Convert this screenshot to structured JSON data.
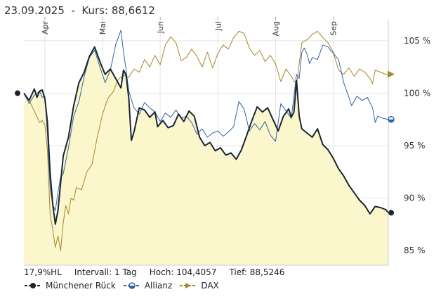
{
  "header": {
    "date": "23.09.2025",
    "separator": "-",
    "kurs_label": "Kurs:",
    "kurs_value": "88,6612"
  },
  "stats": {
    "range": "17,9%HL",
    "interval": "Intervall: 1 Tag",
    "high": "Hoch: 104,4057",
    "low": "Tief: 88,5246"
  },
  "chart_data": {
    "type": "line",
    "title": "23.09.2025 - Kurs: 88,6612",
    "xlabel": "",
    "ylabel": "",
    "x_ticks": [
      "Apr",
      "Mai",
      "Jun",
      "Jul",
      "Aug",
      "Sep"
    ],
    "y_ticks": [
      85,
      90,
      95,
      100,
      105
    ],
    "y_tick_labels": [
      "85 %",
      "90 %",
      "95 %",
      "100 %",
      "105 %"
    ],
    "ylim": [
      83.6,
      107
    ],
    "n_days": 140,
    "month_start_index": [
      8,
      30,
      52,
      74,
      96,
      118
    ],
    "series": [
      {
        "name": "Münchener Rück",
        "color": "#1a2530",
        "end_value": 88.6,
        "points": [
          [
            0,
            100
          ],
          [
            2,
            99.3
          ],
          [
            4,
            100.4
          ],
          [
            5,
            99.6
          ],
          [
            6,
            100.2
          ],
          [
            7,
            100.3
          ],
          [
            8,
            99.5
          ],
          [
            9,
            97.2
          ],
          [
            10,
            92.5
          ],
          [
            11,
            89.4
          ],
          [
            12,
            87.5
          ],
          [
            13,
            88.8
          ],
          [
            14,
            91.4
          ],
          [
            15,
            94.0
          ],
          [
            17,
            95.8
          ],
          [
            19,
            98.8
          ],
          [
            21,
            101.0
          ],
          [
            23,
            102.0
          ],
          [
            25,
            103.5
          ],
          [
            27,
            104.4
          ],
          [
            29,
            103.0
          ],
          [
            31,
            101.8
          ],
          [
            33,
            102.3
          ],
          [
            35,
            101.4
          ],
          [
            37,
            100.5
          ],
          [
            38,
            102.2
          ],
          [
            39,
            101.7
          ],
          [
            40,
            99.5
          ],
          [
            41,
            95.5
          ],
          [
            42,
            96.3
          ],
          [
            44,
            98.6
          ],
          [
            46,
            98.4
          ],
          [
            48,
            97.7
          ],
          [
            50,
            98.2
          ],
          [
            51,
            96.8
          ],
          [
            53,
            97.4
          ],
          [
            55,
            96.7
          ],
          [
            57,
            96.9
          ],
          [
            59,
            98.0
          ],
          [
            61,
            97.3
          ],
          [
            63,
            98.3
          ],
          [
            65,
            97.8
          ],
          [
            67,
            95.8
          ],
          [
            69,
            95.0
          ],
          [
            71,
            95.3
          ],
          [
            73,
            94.5
          ],
          [
            75,
            94.8
          ],
          [
            77,
            94.1
          ],
          [
            79,
            94.3
          ],
          [
            81,
            93.7
          ],
          [
            83,
            94.6
          ],
          [
            85,
            96.0
          ],
          [
            87,
            97.4
          ],
          [
            89,
            98.7
          ],
          [
            91,
            98.2
          ],
          [
            93,
            98.6
          ],
          [
            95,
            97.5
          ],
          [
            97,
            96.4
          ],
          [
            99,
            97.8
          ],
          [
            101,
            98.5
          ],
          [
            102,
            97.7
          ],
          [
            103,
            98.2
          ],
          [
            104,
            101.2
          ],
          [
            105,
            97.8
          ],
          [
            106,
            96.6
          ],
          [
            108,
            96.2
          ],
          [
            110,
            95.8
          ],
          [
            112,
            96.6
          ],
          [
            114,
            95.1
          ],
          [
            116,
            94.6
          ],
          [
            118,
            93.8
          ],
          [
            120,
            92.8
          ],
          [
            122,
            92.1
          ],
          [
            124,
            91.2
          ],
          [
            126,
            90.5
          ],
          [
            128,
            89.8
          ],
          [
            130,
            89.3
          ],
          [
            132,
            88.5
          ],
          [
            134,
            89.2
          ],
          [
            136,
            89.1
          ],
          [
            138,
            88.9
          ],
          [
            139,
            88.6
          ]
        ]
      },
      {
        "name": "Allianz",
        "color": "#2f63a8",
        "end_value": 97.5,
        "points": [
          [
            0,
            100
          ],
          [
            2,
            99.0
          ],
          [
            4,
            99.8
          ],
          [
            6,
            100.2
          ],
          [
            7,
            99.6
          ],
          [
            8,
            99.7
          ],
          [
            9,
            96.0
          ],
          [
            10,
            91.0
          ],
          [
            11,
            89.4
          ],
          [
            12,
            88.8
          ],
          [
            13,
            90.5
          ],
          [
            14,
            92.0
          ],
          [
            15,
            92.3
          ],
          [
            17,
            94.8
          ],
          [
            19,
            97.8
          ],
          [
            21,
            99.2
          ],
          [
            23,
            101.6
          ],
          [
            25,
            103.4
          ],
          [
            27,
            104.1
          ],
          [
            29,
            102.5
          ],
          [
            31,
            101.0
          ],
          [
            33,
            102.2
          ],
          [
            35,
            104.6
          ],
          [
            37,
            106.0
          ],
          [
            38,
            103.9
          ],
          [
            39,
            102.2
          ],
          [
            40,
            100.2
          ],
          [
            42,
            98.6
          ],
          [
            44,
            98.0
          ],
          [
            46,
            99.1
          ],
          [
            48,
            98.6
          ],
          [
            50,
            98.2
          ],
          [
            52,
            97.3
          ],
          [
            54,
            98.1
          ],
          [
            56,
            97.7
          ],
          [
            58,
            98.4
          ],
          [
            60,
            97.6
          ],
          [
            62,
            97.8
          ],
          [
            64,
            97.2
          ],
          [
            66,
            96.1
          ],
          [
            68,
            96.6
          ],
          [
            70,
            95.8
          ],
          [
            72,
            96.2
          ],
          [
            74,
            96.4
          ],
          [
            76,
            95.9
          ],
          [
            78,
            96.3
          ],
          [
            80,
            96.8
          ],
          [
            82,
            99.2
          ],
          [
            84,
            98.5
          ],
          [
            86,
            96.4
          ],
          [
            88,
            97.1
          ],
          [
            90,
            96.5
          ],
          [
            92,
            97.3
          ],
          [
            94,
            96.0
          ],
          [
            96,
            95.4
          ],
          [
            98,
            99.0
          ],
          [
            100,
            98.3
          ],
          [
            102,
            97.6
          ],
          [
            104,
            101.8
          ],
          [
            105,
            101.4
          ],
          [
            106,
            103.9
          ],
          [
            107,
            104.3
          ],
          [
            108,
            103.7
          ],
          [
            109,
            102.8
          ],
          [
            110,
            103.4
          ],
          [
            112,
            103.2
          ],
          [
            114,
            104.6
          ],
          [
            116,
            104.4
          ],
          [
            118,
            103.8
          ],
          [
            120,
            103.2
          ],
          [
            122,
            101.0
          ],
          [
            124,
            99.6
          ],
          [
            125,
            98.8
          ],
          [
            127,
            99.7
          ],
          [
            129,
            99.3
          ],
          [
            131,
            99.6
          ],
          [
            133,
            98.6
          ],
          [
            134,
            97.2
          ],
          [
            135,
            97.8
          ],
          [
            137,
            97.6
          ],
          [
            139,
            97.5
          ]
        ]
      },
      {
        "name": "DAX",
        "color": "#a8862a",
        "end_value": 101.8,
        "points": [
          [
            0,
            100
          ],
          [
            2,
            99.3
          ],
          [
            4,
            98.3
          ],
          [
            6,
            97.2
          ],
          [
            7,
            97.4
          ],
          [
            8,
            97.0
          ],
          [
            9,
            94.5
          ],
          [
            10,
            88.5
          ],
          [
            11,
            87.0
          ],
          [
            12,
            85.3
          ],
          [
            13,
            86.4
          ],
          [
            14,
            85.0
          ],
          [
            15,
            87.6
          ],
          [
            16,
            89.3
          ],
          [
            17,
            88.5
          ],
          [
            18,
            90.0
          ],
          [
            19,
            89.8
          ],
          [
            20,
            91.0
          ],
          [
            22,
            90.8
          ],
          [
            24,
            92.5
          ],
          [
            26,
            93.2
          ],
          [
            28,
            95.8
          ],
          [
            30,
            98.0
          ],
          [
            32,
            99.5
          ],
          [
            34,
            100.1
          ],
          [
            36,
            101.3
          ],
          [
            38,
            101.7
          ],
          [
            40,
            101.5
          ],
          [
            42,
            102.3
          ],
          [
            44,
            102.0
          ],
          [
            46,
            103.2
          ],
          [
            48,
            102.5
          ],
          [
            50,
            103.6
          ],
          [
            52,
            102.7
          ],
          [
            54,
            104.6
          ],
          [
            56,
            105.4
          ],
          [
            58,
            104.8
          ],
          [
            60,
            103.1
          ],
          [
            62,
            103.4
          ],
          [
            64,
            104.2
          ],
          [
            66,
            103.5
          ],
          [
            68,
            102.5
          ],
          [
            70,
            103.9
          ],
          [
            72,
            102.4
          ],
          [
            74,
            103.8
          ],
          [
            76,
            104.6
          ],
          [
            78,
            104.2
          ],
          [
            80,
            105.3
          ],
          [
            82,
            105.9
          ],
          [
            84,
            105.7
          ],
          [
            86,
            104.3
          ],
          [
            88,
            103.6
          ],
          [
            90,
            104.1
          ],
          [
            92,
            103.0
          ],
          [
            94,
            103.6
          ],
          [
            96,
            102.8
          ],
          [
            98,
            101.1
          ],
          [
            100,
            102.3
          ],
          [
            102,
            101.6
          ],
          [
            104,
            100.8
          ],
          [
            106,
            104.8
          ],
          [
            108,
            105.1
          ],
          [
            110,
            105.6
          ],
          [
            112,
            105.9
          ],
          [
            114,
            105.3
          ],
          [
            116,
            104.8
          ],
          [
            118,
            103.9
          ],
          [
            120,
            102.2
          ],
          [
            122,
            101.8
          ],
          [
            124,
            102.4
          ],
          [
            126,
            101.6
          ],
          [
            128,
            102.3
          ],
          [
            130,
            102.0
          ],
          [
            132,
            101.4
          ],
          [
            133,
            100.9
          ],
          [
            134,
            102.2
          ],
          [
            136,
            102.0
          ],
          [
            138,
            101.8
          ],
          [
            139,
            101.8
          ]
        ]
      }
    ]
  },
  "legend": {
    "items": [
      {
        "label": "Münchener Rück",
        "color": "#1a2530",
        "marker": "circle"
      },
      {
        "label": "Allianz",
        "color": "#2f63a8",
        "marker": "half-circle"
      },
      {
        "label": "DAX",
        "color": "#a8862a",
        "marker": "triangle"
      }
    ]
  }
}
